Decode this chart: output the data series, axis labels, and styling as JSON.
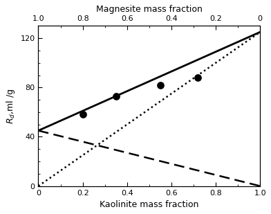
{
  "title_top": "Magnesite mass fraction",
  "xlabel_bottom": "Kaolinite mass fraction",
  "ylim": [
    0,
    130
  ],
  "xlim": [
    0,
    1.0
  ],
  "yticks": [
    0,
    40,
    80,
    120
  ],
  "xticks_bottom": [
    0,
    0.2,
    0.4,
    0.6,
    0.8,
    1.0
  ],
  "solid_line": {
    "x": [
      0,
      1.0
    ],
    "y": [
      45,
      125
    ]
  },
  "dotted_line": {
    "x": [
      0,
      1.0
    ],
    "y": [
      0,
      125
    ]
  },
  "dashed_line": {
    "x": [
      0,
      1.0
    ],
    "y": [
      45,
      0
    ]
  },
  "scatter_x": [
    0.2,
    0.35,
    0.55,
    0.72
  ],
  "scatter_y": [
    58,
    73,
    82,
    88
  ],
  "line_color": "#000000",
  "background_color": "#ffffff"
}
